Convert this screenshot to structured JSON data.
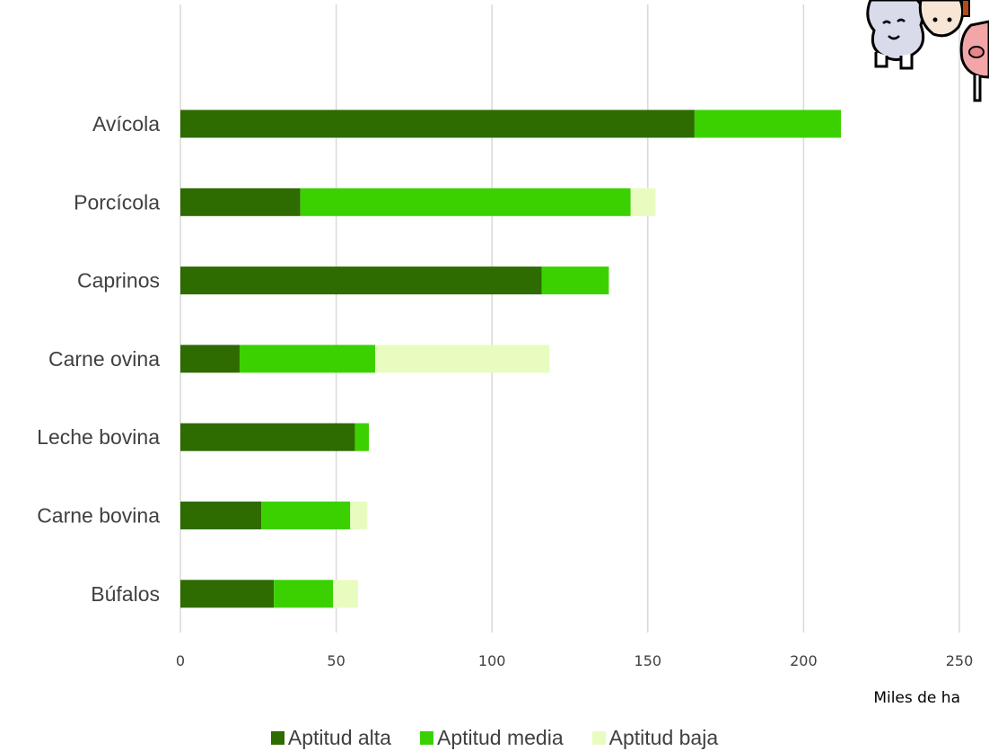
{
  "chart_data": {
    "type": "bar",
    "orientation": "horizontal",
    "stacked": true,
    "categories": [
      "Avícola",
      "Porcícola",
      "Caprinos",
      "Carne ovina",
      "Leche bovina",
      "Carne bovina",
      "Búfalos"
    ],
    "series": [
      {
        "name": "Aptitud alta",
        "color": "#2e6b00",
        "values": [
          165,
          38.5,
          116,
          19,
          56,
          26,
          30
        ]
      },
      {
        "name": "Aptitud media",
        "color": "#3bd100",
        "values": [
          47,
          106,
          21.5,
          43.5,
          4.5,
          28.5,
          19
        ]
      },
      {
        "name": "Aptitud baja",
        "color": "#e8fcc0",
        "values": [
          0,
          8,
          0,
          56,
          0,
          5.5,
          8
        ]
      }
    ],
    "xlim": [
      0,
      250
    ],
    "xticks": [
      0,
      50,
      100,
      150,
      200,
      250
    ],
    "xlabel": "Miles de ha",
    "grid": "vertical",
    "legend_position": "bottom"
  },
  "decoration": {
    "icons": [
      "sheep-icon",
      "cow-icon",
      "pig-icon"
    ]
  }
}
